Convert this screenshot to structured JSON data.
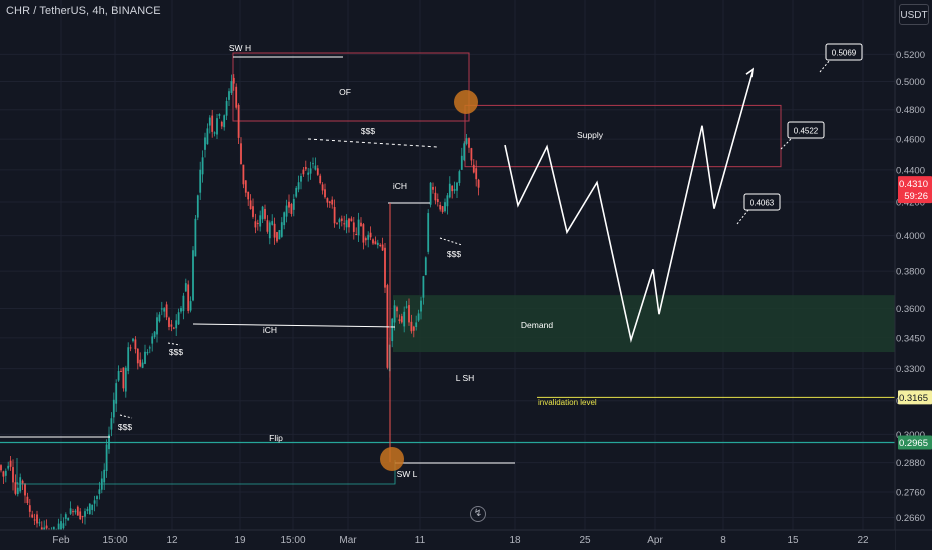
{
  "header": {
    "symbol_title": "CHR / TetherUS, 4h, BINANCE",
    "currency_button": "USDT",
    "scale_icon": "lightning-icon"
  },
  "colors": {
    "background": "#131722",
    "grid": "#1e2230",
    "candle_up": "#26a69a",
    "candle_down": "#ef5350",
    "demand_zone": "#1c3a2c",
    "supply_border": "#b2394d",
    "flip_line": "#26a69a",
    "invalidation_line": "#e8e34a",
    "highlight_circle": "#c8731f"
  },
  "chart_data": {
    "type": "candlestick",
    "pair": "CHR / TetherUS",
    "timeframe": "4h",
    "exchange": "BINANCE",
    "y_scale": "log",
    "ylim": [
      0.257,
      0.536
    ],
    "y_ticks": [
      "0.5200",
      "0.5000",
      "0.4800",
      "0.4600",
      "0.4400",
      "0.4200",
      "0.4000",
      "0.3800",
      "0.3600",
      "0.3450",
      "0.3300",
      "0.3150",
      "0.3000",
      "0.2880",
      "0.2760",
      "0.2660"
    ],
    "x_ticks": [
      "Feb",
      "15:00",
      "12",
      "19",
      "15:00",
      "Mar",
      "11",
      "18",
      "25",
      "Apr",
      "8",
      "15",
      "22"
    ],
    "price_path": [
      [
        0,
        0.288
      ],
      [
        6,
        0.282
      ],
      [
        12,
        0.29
      ],
      [
        18,
        0.275
      ],
      [
        24,
        0.282
      ],
      [
        30,
        0.27
      ],
      [
        36,
        0.266
      ],
      [
        44,
        0.262
      ],
      [
        52,
        0.26
      ],
      [
        60,
        0.262
      ],
      [
        68,
        0.266
      ],
      [
        76,
        0.27
      ],
      [
        84,
        0.266
      ],
      [
        92,
        0.27
      ],
      [
        100,
        0.275
      ],
      [
        106,
        0.282
      ],
      [
        110,
        0.298
      ],
      [
        114,
        0.308
      ],
      [
        118,
        0.322
      ],
      [
        122,
        0.333
      ],
      [
        126,
        0.32
      ],
      [
        130,
        0.338
      ],
      [
        136,
        0.345
      ],
      [
        142,
        0.33
      ],
      [
        148,
        0.338
      ],
      [
        152,
        0.34
      ],
      [
        156,
        0.346
      ],
      [
        160,
        0.356
      ],
      [
        166,
        0.361
      ],
      [
        172,
        0.349
      ],
      [
        178,
        0.351
      ],
      [
        184,
        0.362
      ],
      [
        188,
        0.374
      ],
      [
        192,
        0.353
      ],
      [
        196,
        0.398
      ],
      [
        200,
        0.425
      ],
      [
        204,
        0.447
      ],
      [
        208,
        0.462
      ],
      [
        212,
        0.476
      ],
      [
        216,
        0.462
      ],
      [
        220,
        0.478
      ],
      [
        224,
        0.47
      ],
      [
        228,
        0.481
      ],
      [
        232,
        0.494
      ],
      [
        235,
        0.507
      ],
      [
        238,
        0.487
      ],
      [
        242,
        0.451
      ],
      [
        246,
        0.431
      ],
      [
        250,
        0.423
      ],
      [
        254,
        0.412
      ],
      [
        258,
        0.405
      ],
      [
        262,
        0.409
      ],
      [
        266,
        0.419
      ],
      [
        270,
        0.399
      ],
      [
        274,
        0.411
      ],
      [
        278,
        0.398
      ],
      [
        282,
        0.401
      ],
      [
        286,
        0.413
      ],
      [
        290,
        0.419
      ],
      [
        294,
        0.415
      ],
      [
        298,
        0.425
      ],
      [
        302,
        0.436
      ],
      [
        306,
        0.44
      ],
      [
        310,
        0.436
      ],
      [
        314,
        0.444
      ],
      [
        318,
        0.441
      ],
      [
        322,
        0.434
      ],
      [
        326,
        0.427
      ],
      [
        330,
        0.421
      ],
      [
        334,
        0.418
      ],
      [
        338,
        0.406
      ],
      [
        342,
        0.409
      ],
      [
        346,
        0.405
      ],
      [
        350,
        0.408
      ],
      [
        354,
        0.406
      ],
      [
        358,
        0.401
      ],
      [
        362,
        0.41
      ],
      [
        366,
        0.397
      ],
      [
        370,
        0.402
      ],
      [
        374,
        0.398
      ],
      [
        378,
        0.396
      ],
      [
        382,
        0.392
      ],
      [
        386,
        0.394
      ],
      [
        388,
        0.364
      ],
      [
        390,
        0.325
      ],
      [
        392,
        0.341
      ],
      [
        396,
        0.361
      ],
      [
        400,
        0.356
      ],
      [
        404,
        0.352
      ],
      [
        408,
        0.363
      ],
      [
        412,
        0.351
      ],
      [
        416,
        0.348
      ],
      [
        420,
        0.356
      ],
      [
        424,
        0.366
      ],
      [
        428,
        0.387
      ],
      [
        432,
        0.432
      ],
      [
        436,
        0.426
      ],
      [
        440,
        0.42
      ],
      [
        444,
        0.415
      ],
      [
        448,
        0.418
      ],
      [
        452,
        0.429
      ],
      [
        456,
        0.424
      ],
      [
        460,
        0.435
      ],
      [
        464,
        0.446
      ],
      [
        468,
        0.463
      ],
      [
        472,
        0.45
      ],
      [
        476,
        0.44
      ],
      [
        480,
        0.431
      ]
    ],
    "last_price": "0.4310",
    "countdown": "59:26",
    "zones": [
      {
        "name": "Supply",
        "y_top": 0.483,
        "y_bottom": 0.442
      },
      {
        "name": "Demand",
        "y_top": 0.367,
        "y_bottom": 0.338
      }
    ],
    "levels": [
      {
        "name": "Flip",
        "value": 0.2965,
        "tag": "0.2965"
      },
      {
        "name": "invalidation level",
        "value": 0.3165,
        "tag": "0.3165"
      }
    ],
    "annotations": [
      "SW H",
      "OF",
      "$$$",
      "iCH",
      "$$$",
      "iCH",
      "$$$",
      "$$$",
      "L SH",
      "SW L",
      "Supply",
      "Demand",
      "Flip",
      "invalidation level"
    ],
    "projection_path": [
      [
        505,
        0.456
      ],
      [
        518,
        0.418
      ],
      [
        547,
        0.455
      ],
      [
        567,
        0.402
      ],
      [
        597,
        0.432
      ],
      [
        631,
        0.344
      ],
      [
        653,
        0.381
      ],
      [
        659,
        0.357
      ],
      [
        702,
        0.469
      ],
      [
        714,
        0.416
      ],
      [
        753,
        0.509
      ]
    ],
    "targets": [
      "0.5069",
      "0.4522",
      "0.4063"
    ]
  }
}
